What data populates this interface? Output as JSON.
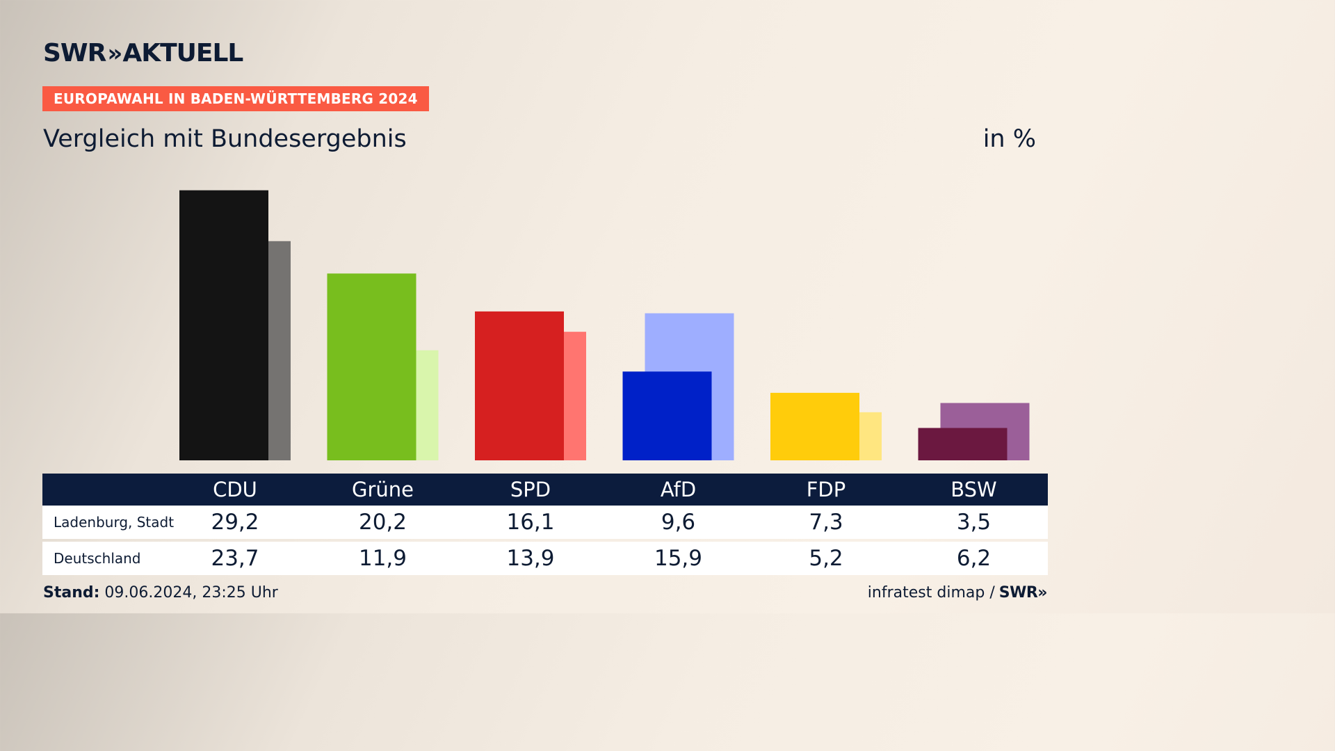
{
  "brand": {
    "logo_text": "SWR",
    "logo_chevrons": "»",
    "logo_suffix": "AKTUELL"
  },
  "badge": "EUROPAWAHL IN BADEN-WÜRTTEMBERG 2024",
  "subtitle": "Vergleich mit Bundesergebnis",
  "unit": "in %",
  "footer": {
    "stand_label": "Stand:",
    "stand_value": "09.06.2024, 23:25 Uhr",
    "source": "infratest dimap /",
    "source_logo": "SWR»"
  },
  "chart_data": {
    "type": "bar",
    "categories": [
      "CDU",
      "Grüne",
      "SPD",
      "AfD",
      "FDP",
      "BSW"
    ],
    "series": [
      {
        "name": "Ladenburg, Stadt",
        "values": [
          29.2,
          20.2,
          16.1,
          9.6,
          7.3,
          3.5
        ]
      },
      {
        "name": "Deutschland",
        "values": [
          23.7,
          11.9,
          13.9,
          15.9,
          5.2,
          6.2
        ]
      }
    ],
    "colors": {
      "primary": [
        "#141414",
        "#78be1e",
        "#d62020",
        "#0021c8",
        "#ffcc0b",
        "#6b1840"
      ],
      "secondary": [
        "#757371",
        "#d9f5ac",
        "#ff7570",
        "#9eaeff",
        "#ffe680",
        "#9b5f99"
      ]
    },
    "header_colors": {
      "table_header": "#0c1c3d",
      "badge": "#fa5a43"
    }
  }
}
